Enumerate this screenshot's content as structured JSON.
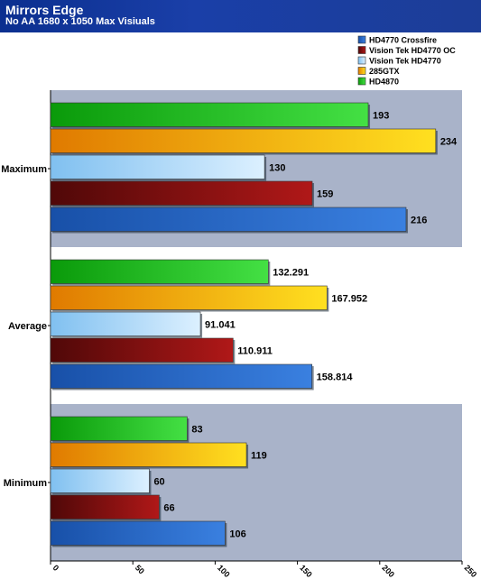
{
  "header": {
    "title": "Mirrors Edge",
    "subtitle": "No AA 1680 x 1050 Max Visiuals"
  },
  "chart_data": {
    "type": "bar",
    "orientation": "horizontal",
    "categories": [
      "Maximum",
      "Average",
      "Minimum"
    ],
    "series": [
      {
        "name": "HD4870",
        "color": "#22c022",
        "values": [
          193,
          132.291,
          83
        ],
        "labels": [
          "193",
          "132.291",
          "83"
        ]
      },
      {
        "name": "285GTX",
        "color": "#f0a010",
        "values": [
          234,
          167.952,
          119
        ],
        "labels": [
          "234",
          "167.952",
          "119"
        ]
      },
      {
        "name": "Vision Tek HD4770",
        "color": "#a8d4f8",
        "values": [
          130,
          91.041,
          60
        ],
        "labels": [
          "130",
          "91.041",
          "60"
        ]
      },
      {
        "name": "Vision Tek HD4770 OC",
        "color": "#8a1010",
        "values": [
          159,
          110.911,
          66
        ],
        "labels": [
          "159",
          "110.911",
          "66"
        ]
      },
      {
        "name": "HD4770 Crossfire",
        "color": "#2a68c8",
        "values": [
          216,
          158.814,
          106
        ],
        "labels": [
          "216",
          "158.814",
          "106"
        ]
      }
    ],
    "legend": {
      "placement": "top-right",
      "order": [
        "HD4770 Crossfire",
        "Vision Tek HD4770 OC",
        "Vision Tek HD4770",
        "285GTX",
        "HD4870"
      ]
    },
    "x_ticks": [
      "0",
      "50",
      "100",
      "150",
      "200",
      "250"
    ],
    "xlim": [
      0,
      250
    ],
    "grid": false
  }
}
